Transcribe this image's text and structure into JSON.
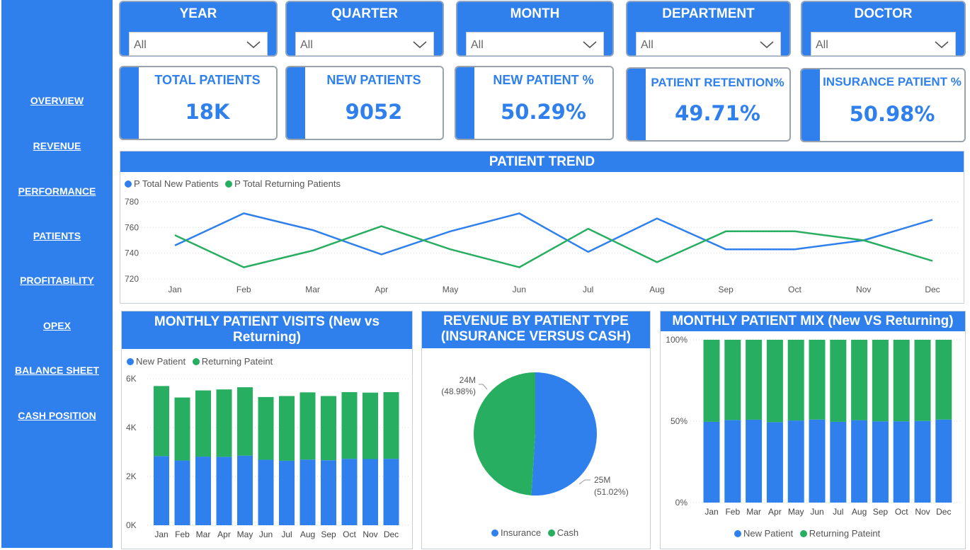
{
  "nav": [
    {
      "label": "OVERVIEW"
    },
    {
      "label": "REVENUE"
    },
    {
      "label": "PERFORMANCE"
    },
    {
      "label": "PATIENTS"
    },
    {
      "label": "PROFITABILITY"
    },
    {
      "label": "OPEX"
    },
    {
      "label": "BALANCE SHEET"
    },
    {
      "label": "CASH POSITION"
    }
  ],
  "slicers": [
    {
      "title": "YEAR",
      "value": "All"
    },
    {
      "title": "QUARTER",
      "value": "All"
    },
    {
      "title": "MONTH",
      "value": "All"
    },
    {
      "title": "DEPARTMENT",
      "value": "All"
    },
    {
      "title": "DOCTOR",
      "value": "All"
    }
  ],
  "cards": [
    {
      "label": "TOTAL PATIENTS",
      "value": "18K"
    },
    {
      "label": "NEW PATIENTS",
      "value": "9052"
    },
    {
      "label": "NEW PATIENT %",
      "value": "50.29%"
    },
    {
      "label": "PATIENT RETENTION%",
      "value": "49.71%"
    },
    {
      "label": "INSURANCE PATIENT %",
      "value": "50.98%"
    }
  ],
  "colors": {
    "blue": "#2f80ed",
    "green": "#27ae60"
  },
  "trend": {
    "title": "PATIENT TREND",
    "legend": [
      "P Total New Patients",
      "P Total Returning Patients"
    ]
  },
  "visits": {
    "title_line1": "MONTHLY PATIENT VISITS (New vs",
    "title_line2": "Returning)",
    "legend": [
      "New Patient",
      "Returning Pateint"
    ]
  },
  "revenue": {
    "title_line1": "REVENUE BY PATIENT TYPE",
    "title_line2": "(INSURANCE VERSUS CASH)",
    "legend": [
      "Insurance",
      "Cash"
    ],
    "cash_label": "24M",
    "cash_pct": "(48.98%)",
    "ins_label": "25M",
    "ins_pct": "(51.02%)"
  },
  "mix": {
    "title": "MONTHLY PATIENT MIX (New VS Returning)",
    "legend": [
      "New Patient",
      "Returning Pateint"
    ]
  },
  "chart_data": [
    {
      "type": "line",
      "title": "PATIENT TREND",
      "categories": [
        "Jan",
        "Feb",
        "Mar",
        "Apr",
        "May",
        "Jun",
        "Jul",
        "Aug",
        "Sep",
        "Oct",
        "Nov",
        "Dec"
      ],
      "ylim": [
        715,
        785
      ],
      "yticks": [
        720,
        740,
        760,
        780
      ],
      "grid": true,
      "legend_position": "top-left",
      "series": [
        {
          "name": "P Total New Patients",
          "color": "#2f80ed",
          "values": [
            746,
            771,
            758,
            739,
            757,
            771,
            741,
            767,
            743,
            743,
            750,
            766
          ]
        },
        {
          "name": "P Total Returning Patients",
          "color": "#27ae60",
          "values": [
            754,
            729,
            742,
            761,
            743,
            729,
            759,
            733,
            757,
            757,
            750,
            734
          ]
        }
      ]
    },
    {
      "type": "bar",
      "stacked": true,
      "title": "MONTHLY PATIENT VISITS (New vs Returning)",
      "categories": [
        "Jan",
        "Feb",
        "Mar",
        "Apr",
        "May",
        "Jun",
        "Jul",
        "Aug",
        "Sep",
        "Oct",
        "Nov",
        "Dec"
      ],
      "ylim": [
        0,
        6000
      ],
      "yticks": [
        0,
        2000,
        4000,
        6000
      ],
      "ytick_labels": [
        "0K",
        "2K",
        "4K",
        "6K"
      ],
      "legend_position": "top-left",
      "series": [
        {
          "name": "New Patient",
          "color": "#2f80ed",
          "values": [
            2830,
            2650,
            2810,
            2800,
            2850,
            2680,
            2640,
            2690,
            2660,
            2720,
            2710,
            2720
          ]
        },
        {
          "name": "Returning Pateint",
          "color": "#27ae60",
          "values": [
            2870,
            2580,
            2710,
            2760,
            2800,
            2570,
            2650,
            2750,
            2630,
            2730,
            2720,
            2730
          ]
        }
      ]
    },
    {
      "type": "pie",
      "title": "REVENUE BY PATIENT TYPE (INSURANCE VERSUS CASH)",
      "legend_position": "bottom",
      "slices": [
        {
          "name": "Insurance",
          "value": 25,
          "percent": 51.02,
          "label": "25M",
          "color": "#2f80ed"
        },
        {
          "name": "Cash",
          "value": 24,
          "percent": 48.98,
          "label": "24M",
          "color": "#27ae60"
        }
      ]
    },
    {
      "type": "bar",
      "stacked": true,
      "percent": true,
      "title": "MONTHLY PATIENT MIX (New VS Returning)",
      "categories": [
        "Jan",
        "Feb",
        "Mar",
        "Apr",
        "May",
        "Jun",
        "Jul",
        "Aug",
        "Sep",
        "Oct",
        "Nov",
        "Dec"
      ],
      "ylim": [
        0,
        100
      ],
      "yticks": [
        0,
        50,
        100
      ],
      "ytick_labels": [
        "0%",
        "50%",
        "100%"
      ],
      "legend_position": "bottom",
      "series": [
        {
          "name": "New Patient",
          "color": "#2f80ed",
          "values": [
            49.6,
            50.7,
            50.9,
            49.4,
            50.4,
            51.0,
            49.6,
            50.6,
            49.9,
            49.9,
            50.1,
            51.0
          ]
        },
        {
          "name": "Returning Pateint",
          "color": "#27ae60",
          "values": [
            50.4,
            49.3,
            49.1,
            50.6,
            49.6,
            49.0,
            50.4,
            49.4,
            50.1,
            50.1,
            49.9,
            49.0
          ]
        }
      ]
    }
  ]
}
